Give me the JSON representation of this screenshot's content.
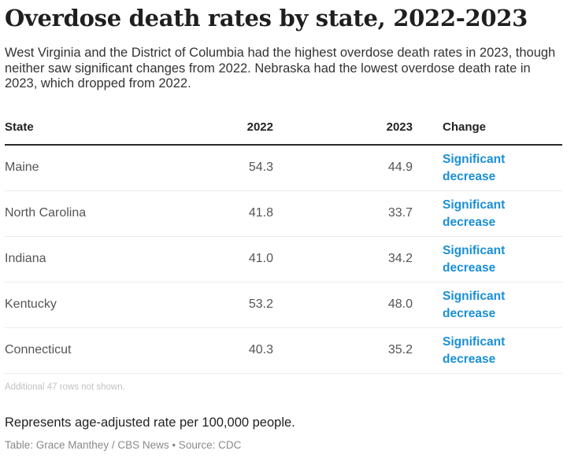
{
  "title": "Overdose death rates by state, 2022-2023",
  "subtitle": "West Virginia and the District of Columbia had the highest overdose death rates in 2023, though neither saw significant changes from 2022. Nebraska had the lowest overdose death rate in 2023, which dropped from 2022.",
  "chart_data": {
    "type": "table",
    "columns": [
      "State",
      "2022",
      "2023",
      "Change"
    ],
    "rows": [
      {
        "state": "Maine",
        "y2022": "54.3",
        "y2023": "44.9",
        "change": "Significant decrease"
      },
      {
        "state": "North Carolina",
        "y2022": "41.8",
        "y2023": "33.7",
        "change": "Significant decrease"
      },
      {
        "state": "Indiana",
        "y2022": "41.0",
        "y2023": "34.2",
        "change": "Significant decrease"
      },
      {
        "state": "Kentucky",
        "y2022": "53.2",
        "y2023": "48.0",
        "change": "Significant decrease"
      },
      {
        "state": "Connecticut",
        "y2022": "40.3",
        "y2023": "35.2",
        "change": "Significant decrease"
      }
    ],
    "hidden_rows_note": "Additional 47 rows not shown.",
    "change_color": "#1a8fd6"
  },
  "footnote": "Represents age-adjusted rate per 100,000 people.",
  "credit": "Table: Grace Manthey / CBS News • Source: CDC"
}
